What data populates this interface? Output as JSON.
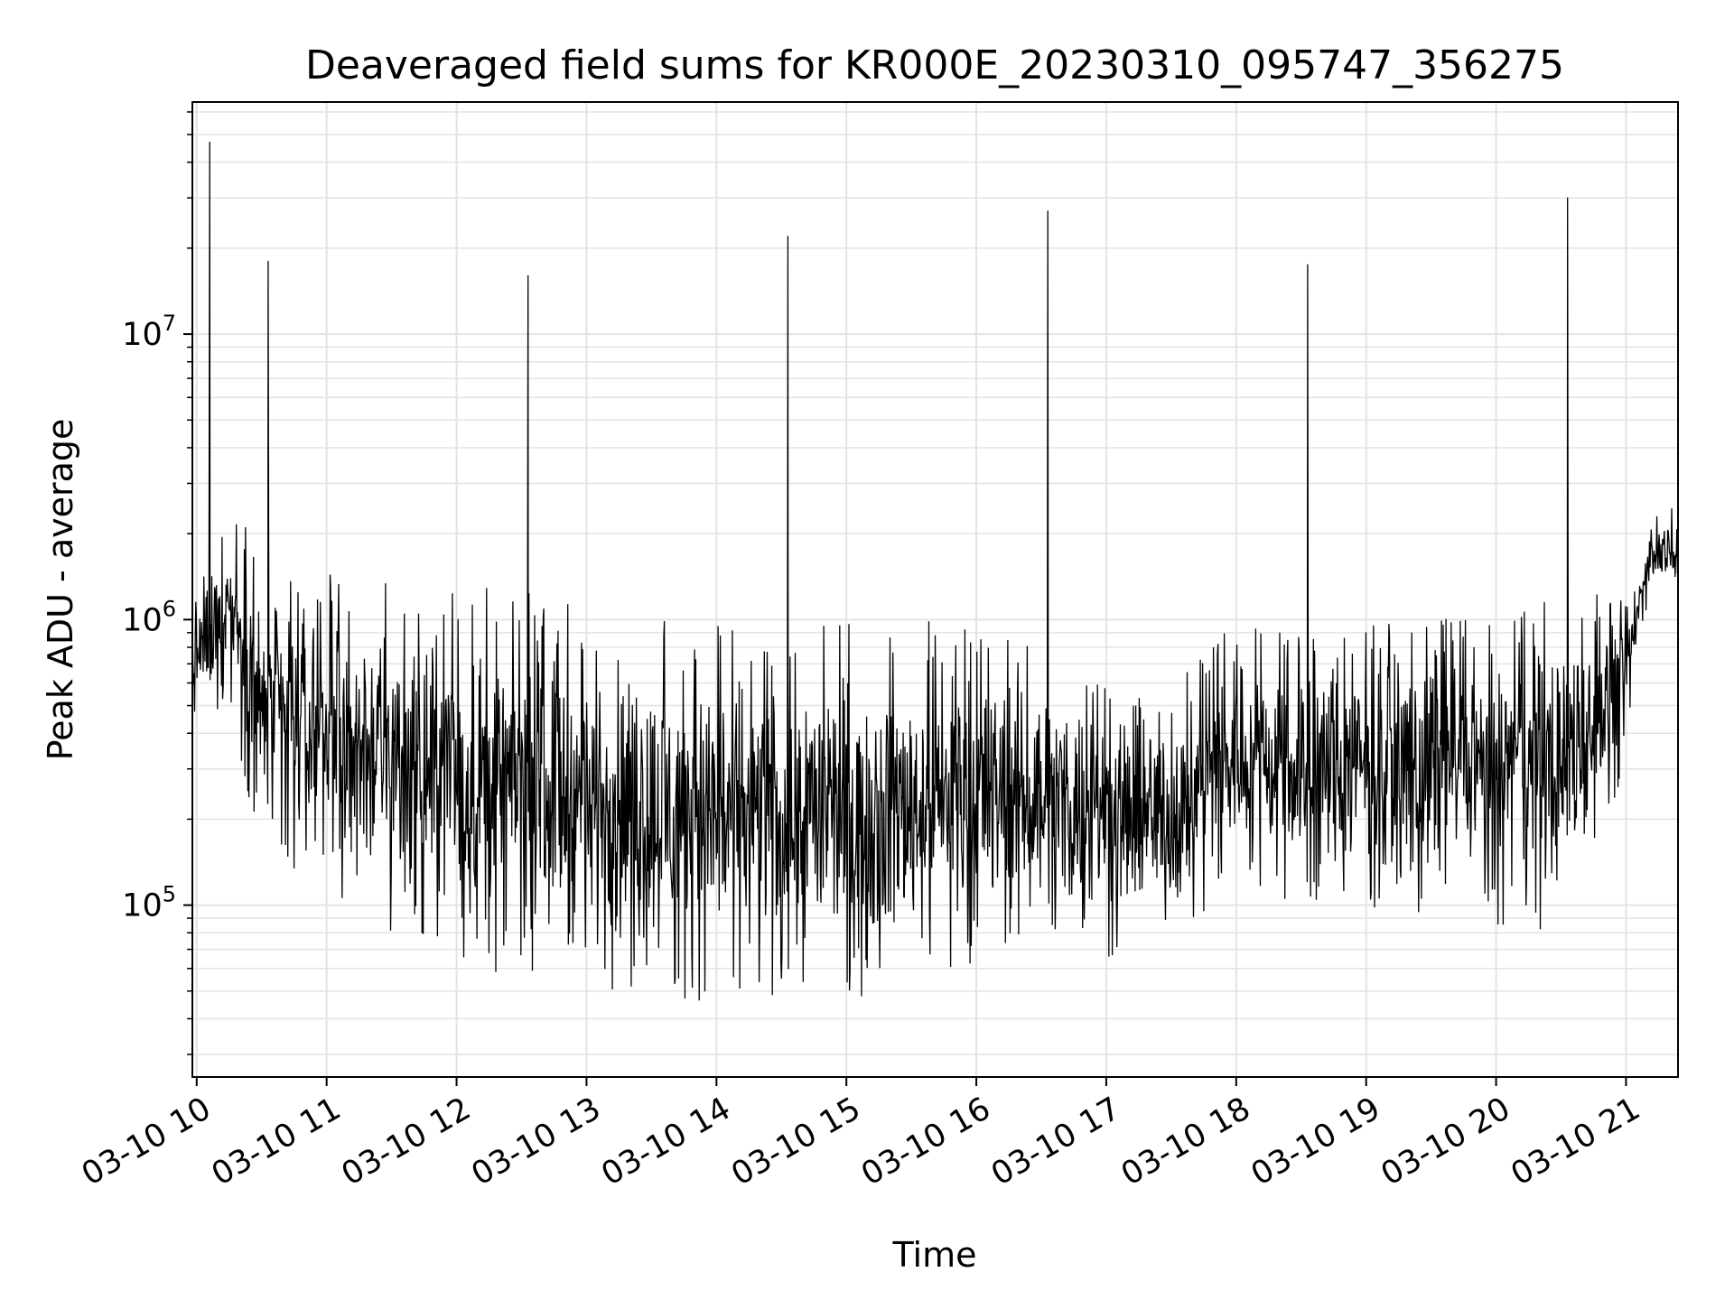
{
  "chart_data": {
    "type": "line",
    "title": "Deaveraged field sums for KR000E_20230310_095747_356275",
    "xlabel": "Time",
    "ylabel": "Peak ADU - average",
    "yscale": "log",
    "ylim": [
      25000,
      65000000
    ],
    "xlim": [
      "2023-03-10 09:58",
      "2023-03-10 21:24"
    ],
    "grid": true,
    "line_color": "#000000",
    "x_ticks": [
      {
        "value": "2023-03-10 10:00",
        "label": "03-10 10"
      },
      {
        "value": "2023-03-10 11:00",
        "label": "03-10 11"
      },
      {
        "value": "2023-03-10 12:00",
        "label": "03-10 12"
      },
      {
        "value": "2023-03-10 13:00",
        "label": "03-10 13"
      },
      {
        "value": "2023-03-10 14:00",
        "label": "03-10 14"
      },
      {
        "value": "2023-03-10 15:00",
        "label": "03-10 15"
      },
      {
        "value": "2023-03-10 16:00",
        "label": "03-10 16"
      },
      {
        "value": "2023-03-10 17:00",
        "label": "03-10 17"
      },
      {
        "value": "2023-03-10 18:00",
        "label": "03-10 18"
      },
      {
        "value": "2023-03-10 19:00",
        "label": "03-10 19"
      },
      {
        "value": "2023-03-10 20:00",
        "label": "03-10 20"
      },
      {
        "value": "2023-03-10 21:00",
        "label": "03-10 21"
      }
    ],
    "y_ticks": [
      {
        "value": 100000,
        "base": "10",
        "exp": "5"
      },
      {
        "value": 1000000,
        "base": "10",
        "exp": "6"
      },
      {
        "value": 10000000,
        "base": "10",
        "exp": "7"
      }
    ],
    "spikes": [
      {
        "x": "2023-03-10 10:06",
        "y": 47000000
      },
      {
        "x": "2023-03-10 10:33",
        "y": 18000000
      },
      {
        "x": "2023-03-10 12:33",
        "y": 16000000
      },
      {
        "x": "2023-03-10 14:33",
        "y": 22000000
      },
      {
        "x": "2023-03-10 16:33",
        "y": 27000000
      },
      {
        "x": "2023-03-10 18:33",
        "y": 17500000
      },
      {
        "x": "2023-03-10 20:33",
        "y": 30000000
      }
    ],
    "envelope": [
      {
        "x": "2023-03-10 09:58",
        "low": 330000,
        "high": 1500000
      },
      {
        "x": "2023-03-10 10:15",
        "low": 500000,
        "high": 2800000
      },
      {
        "x": "2023-03-10 10:30",
        "low": 140000,
        "high": 1600000
      },
      {
        "x": "2023-03-10 11:00",
        "low": 120000,
        "high": 1500000
      },
      {
        "x": "2023-03-10 11:30",
        "low": 70000,
        "high": 1500000
      },
      {
        "x": "2023-03-10 12:00",
        "low": 55000,
        "high": 1400000
      },
      {
        "x": "2023-03-10 12:30",
        "low": 55000,
        "high": 1300000
      },
      {
        "x": "2023-03-10 13:00",
        "low": 50000,
        "high": 1100000
      },
      {
        "x": "2023-03-10 13:30",
        "low": 45000,
        "high": 1000000
      },
      {
        "x": "2023-03-10 14:00",
        "low": 45000,
        "high": 1000000
      },
      {
        "x": "2023-03-10 14:30",
        "low": 45000,
        "high": 1000000
      },
      {
        "x": "2023-03-10 15:00",
        "low": 45000,
        "high": 1000000
      },
      {
        "x": "2023-03-10 15:30",
        "low": 50000,
        "high": 1000000
      },
      {
        "x": "2023-03-10 16:00",
        "low": 60000,
        "high": 1000000
      },
      {
        "x": "2023-03-10 16:30",
        "low": 65000,
        "high": 900000
      },
      {
        "x": "2023-03-10 17:00",
        "low": 65000,
        "high": 700000
      },
      {
        "x": "2023-03-10 17:30",
        "low": 70000,
        "high": 600000
      },
      {
        "x": "2023-03-10 18:00",
        "low": 120000,
        "high": 1000000
      },
      {
        "x": "2023-03-10 18:30",
        "low": 100000,
        "high": 900000
      },
      {
        "x": "2023-03-10 19:00",
        "low": 90000,
        "high": 1000000
      },
      {
        "x": "2023-03-10 19:30",
        "low": 90000,
        "high": 1000000
      },
      {
        "x": "2023-03-10 20:00",
        "low": 85000,
        "high": 1100000
      },
      {
        "x": "2023-03-10 20:30",
        "low": 80000,
        "high": 1200000
      },
      {
        "x": "2023-03-10 21:00",
        "low": 300000,
        "high": 1300000
      },
      {
        "x": "2023-03-10 21:10",
        "low": 1200000,
        "high": 2200000
      },
      {
        "x": "2023-03-10 21:24",
        "low": 1400000,
        "high": 2600000
      }
    ]
  }
}
